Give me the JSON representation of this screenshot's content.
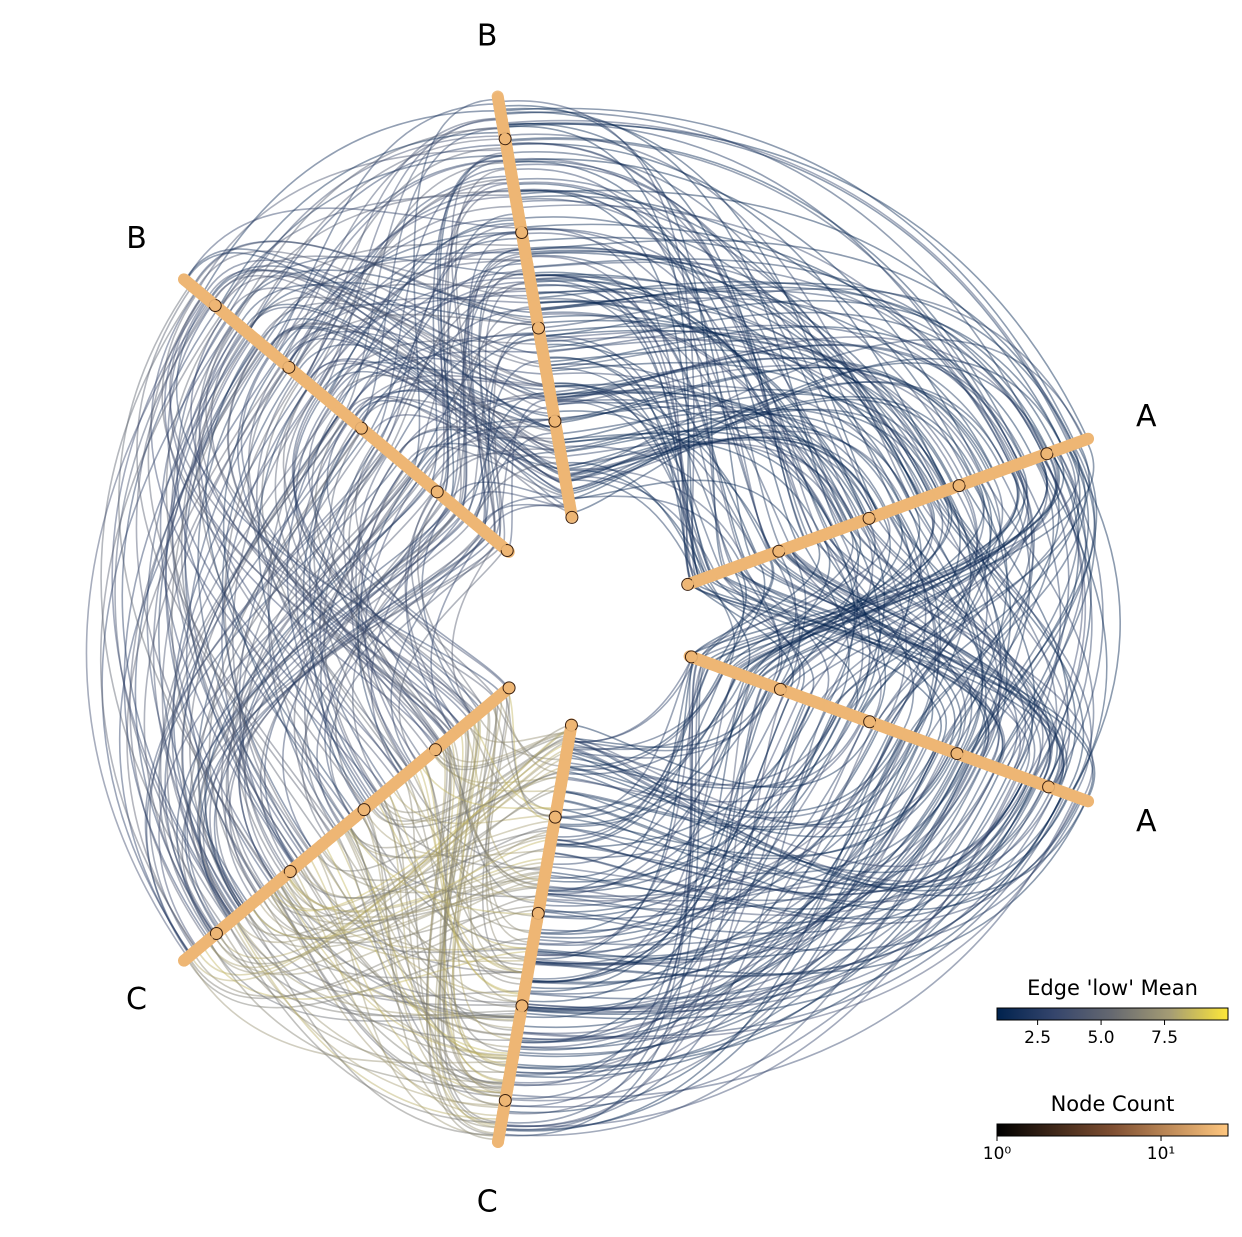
{
  "chart_data": {
    "type": "hive",
    "axes": [
      {
        "label": "A"
      },
      {
        "label": "A"
      },
      {
        "label": "C"
      },
      {
        "label": "C"
      },
      {
        "label": "B"
      },
      {
        "label": "B"
      }
    ],
    "edge_means": [
      1.5,
      2.0,
      7.0,
      3.5,
      3.0,
      1.5
    ],
    "edge_colorbar": {
      "title": "Edge 'low' Mean",
      "lim": [
        0.9,
        10.0
      ],
      "ticks": [
        {
          "value": 2.5,
          "label": "2.5"
        },
        {
          "value": 5.0,
          "label": "5.0"
        },
        {
          "value": 7.5,
          "label": "7.5"
        }
      ],
      "colormap": [
        "#00224e",
        "#35456c",
        "#666970",
        "#a59c74",
        "#fee838"
      ]
    },
    "node_colorbar": {
      "title": "Node Count",
      "lim": [
        1,
        25.6
      ],
      "log": true,
      "ticks": [
        {
          "value": 1,
          "label": "10⁰"
        },
        {
          "value": 10,
          "label": "10¹"
        }
      ],
      "colormap": [
        "#000000",
        "#7f4f32",
        "#ffc77f"
      ]
    }
  }
}
